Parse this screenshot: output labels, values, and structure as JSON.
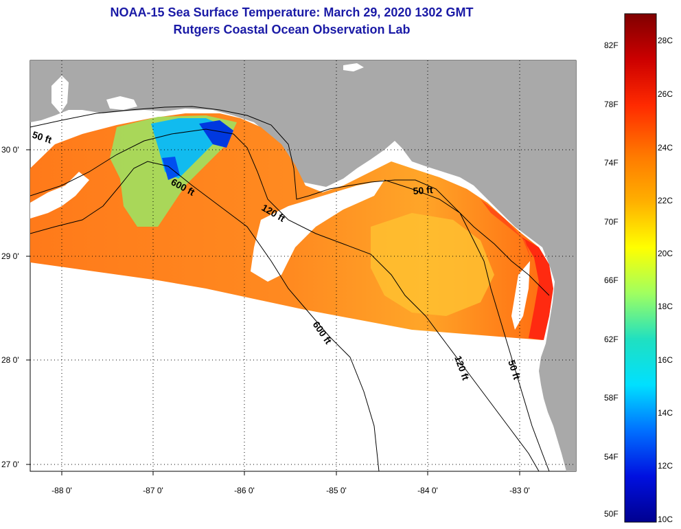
{
  "title": "NOAA-15 Sea Surface Temperature:  March 29, 2020 1302 GMT",
  "subtitle": "Rutgers Coastal Ocean Observation Lab",
  "map": {
    "lon_ticks": [
      "-88 0'",
      "-87 0'",
      "-86 0'",
      "-85 0'",
      "-84 0'",
      "-83 0'"
    ],
    "lat_ticks": [
      "30 0'",
      "29 0'",
      "28 0'",
      "27 0'"
    ],
    "contours": [
      {
        "label": "50 ft"
      },
      {
        "label": "600 ft"
      },
      {
        "label": "120 ft"
      },
      {
        "label": "50 ft"
      },
      {
        "label": "600 ft"
      },
      {
        "label": "120 ft"
      },
      {
        "label": "50 ft"
      }
    ],
    "colors": {
      "land": "#a9a9a9",
      "no_data": "#ffffff",
      "contour": "#000000",
      "grid": "#000000"
    }
  },
  "colorbar": {
    "fahrenheit": [
      "82F",
      "78F",
      "74F",
      "70F",
      "66F",
      "62F",
      "58F",
      "54F",
      "50F"
    ],
    "celsius": [
      "28C",
      "26C",
      "24C",
      "22C",
      "20C",
      "18C",
      "16C",
      "14C",
      "12C",
      "10C"
    ],
    "gradient": [
      "#800000",
      "#cc0000",
      "#ff2a00",
      "#ff7a00",
      "#ffb000",
      "#ffff00",
      "#a0ff60",
      "#20e0c0",
      "#00e0ff",
      "#0070ff",
      "#0010e0",
      "#000090"
    ]
  }
}
